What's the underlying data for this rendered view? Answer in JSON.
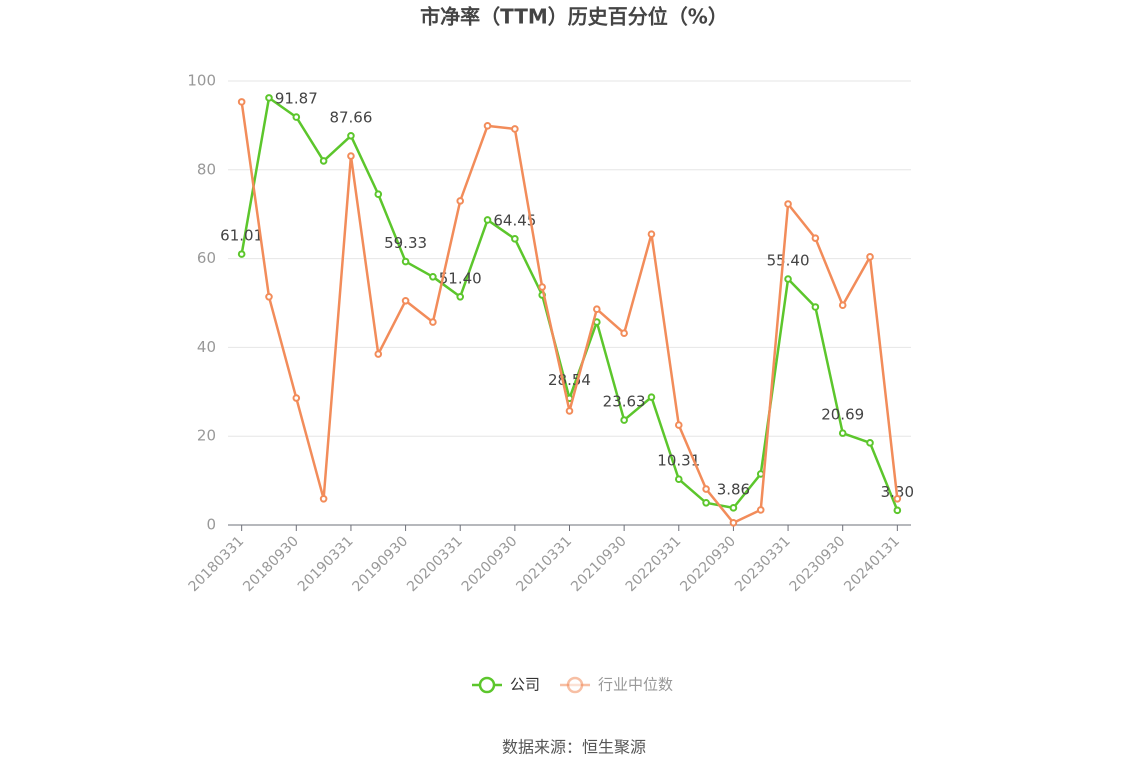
{
  "chart_data": {
    "type": "line",
    "title": "市净率（TTM）历史百分位（%）",
    "source": "数据来源：恒生聚源",
    "categories": [
      "20180331",
      null,
      "20180930",
      null,
      "20190331",
      null,
      "20190930",
      null,
      "20200331",
      null,
      "20200930",
      null,
      "20210331",
      null,
      "20210930",
      null,
      "20220331",
      null,
      "20220930",
      null,
      "20230331",
      null,
      "20230930",
      null,
      "20240131"
    ],
    "series": [
      {
        "name": "公司",
        "color": "#5cc62c",
        "values": [
          61.01,
          96.2,
          91.87,
          82.0,
          87.66,
          74.5,
          59.33,
          55.9,
          51.4,
          68.7,
          64.45,
          51.8,
          28.54,
          45.7,
          23.63,
          28.8,
          10.31,
          5.0,
          3.86,
          11.5,
          55.4,
          49.1,
          20.69,
          18.5,
          3.3
        ],
        "value_labels": [
          "61.01",
          null,
          "91.87",
          null,
          "87.66",
          null,
          "59.33",
          null,
          "51.40",
          null,
          "64.45",
          null,
          "28.54",
          null,
          "23.63",
          null,
          "10.31",
          null,
          "3.86",
          null,
          "55.40",
          null,
          "20.69",
          null,
          "3.30"
        ]
      },
      {
        "name": "行业中位数",
        "color": "#f28c5a",
        "values": [
          95.3,
          51.4,
          28.6,
          5.9,
          83.1,
          38.5,
          50.5,
          45.7,
          73.0,
          89.9,
          89.2,
          53.6,
          25.7,
          48.6,
          43.2,
          65.5,
          22.5,
          8.1,
          0.5,
          3.4,
          72.3,
          64.6,
          49.5,
          60.4,
          5.9
        ]
      }
    ],
    "ylim": [
      0,
      100
    ],
    "yticks": [
      0,
      20,
      40,
      60,
      80,
      100
    ],
    "grid": true
  }
}
